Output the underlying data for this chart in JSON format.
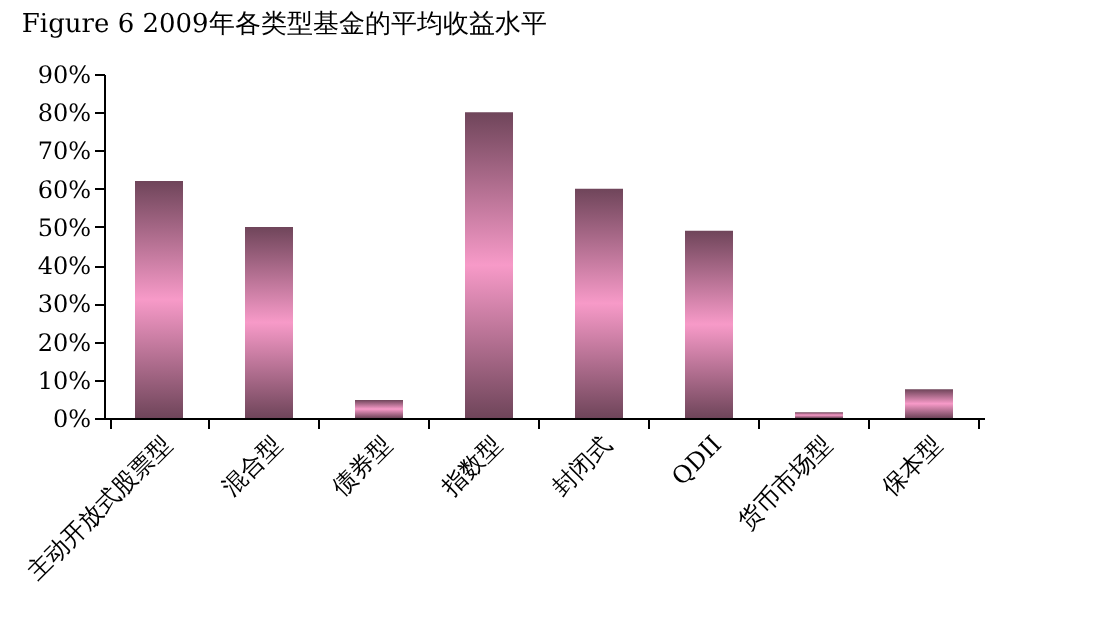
{
  "chart_data": {
    "type": "bar",
    "title": "Figure 6  2009年各类型基金的平均收益水平",
    "categories": [
      "主动开放式股票型",
      "混合型",
      "债券型",
      "指数型",
      "封闭式",
      "QDII",
      "货币市场型",
      "保本型"
    ],
    "values": [
      62,
      50,
      4.7,
      80,
      60,
      49,
      1.5,
      7.5
    ],
    "color": "#f79ac8",
    "ylim": [
      0,
      90
    ],
    "yticks": [
      {
        "value": 0,
        "label": "0%"
      },
      {
        "value": 10,
        "label": "10%"
      },
      {
        "value": 20,
        "label": "20%"
      },
      {
        "value": 30,
        "label": "30%"
      },
      {
        "value": 40,
        "label": "40%"
      },
      {
        "value": 50,
        "label": "50%"
      },
      {
        "value": 60,
        "label": "60%"
      },
      {
        "value": 70,
        "label": "70%"
      },
      {
        "value": 80,
        "label": "80%"
      },
      {
        "value": 90,
        "label": "90%"
      }
    ],
    "grid": false
  }
}
